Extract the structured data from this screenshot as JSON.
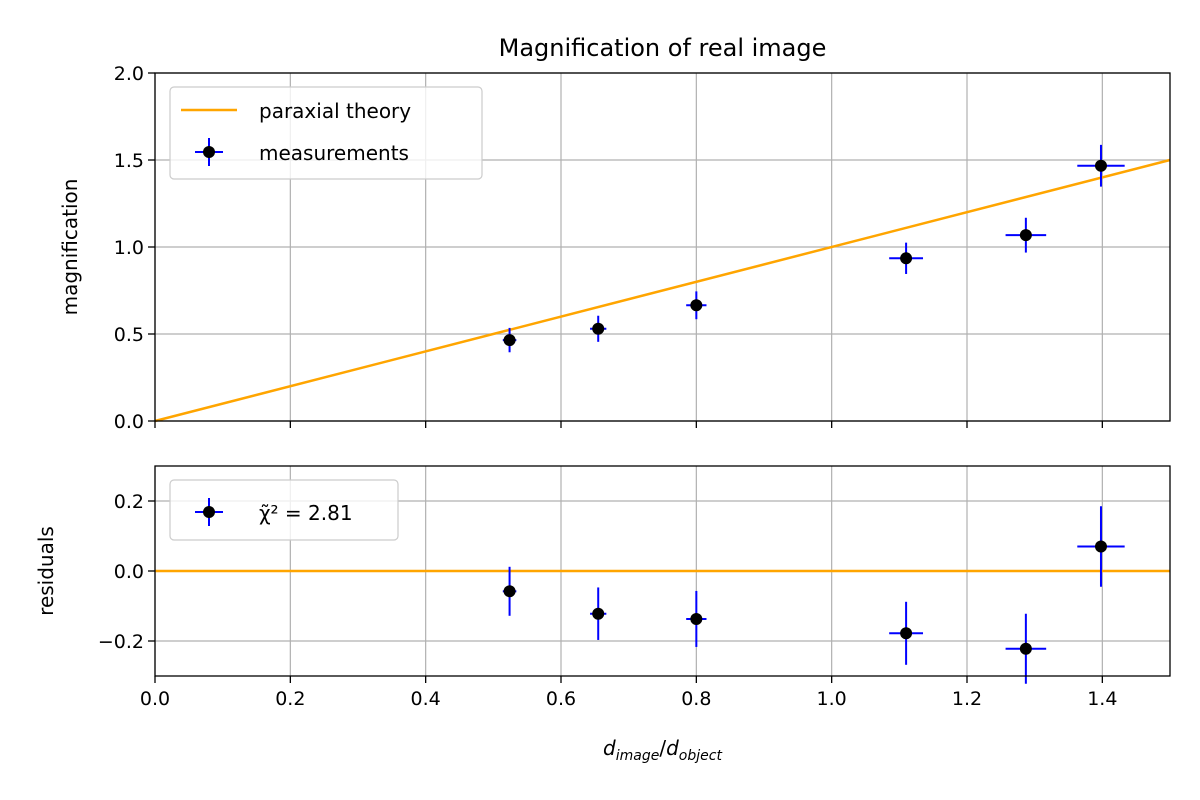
{
  "colors": {
    "theory": "#ffa500",
    "errorbar": "#0000ff",
    "marker": "#000000",
    "grid": "#b0b0b0",
    "axes": "#000000",
    "legend_border": "#cccccc"
  },
  "chart_data": [
    {
      "type": "scatter",
      "title": "Magnification of real image",
      "xlabel": "",
      "ylabel": "magnification",
      "xlim": [
        0.0,
        1.5
      ],
      "ylim": [
        0.0,
        2.0
      ],
      "grid": true,
      "legend_position": "top-left",
      "xticks": [
        0.0,
        0.2,
        0.4,
        0.6,
        0.8,
        1.0,
        1.2,
        1.4
      ],
      "yticks": [
        0.0,
        0.5,
        1.0,
        1.5,
        2.0
      ],
      "ytick_labels": [
        "0.0",
        "0.5",
        "1.0",
        "1.5",
        "2.0"
      ],
      "show_xtick_labels": false,
      "theory": {
        "name": "paraxial theory",
        "type": "line",
        "x": [
          0.0,
          1.5
        ],
        "y": [
          0.0,
          1.5
        ]
      },
      "series": [
        {
          "name": "measurements",
          "x": [
            0.524,
            0.655,
            0.8,
            1.11,
            1.287,
            1.398
          ],
          "y": [
            0.465,
            0.53,
            0.665,
            0.935,
            1.068,
            1.467
          ],
          "xerr": [
            0.01,
            0.012,
            0.015,
            0.025,
            0.03,
            0.035
          ],
          "yerr": [
            0.07,
            0.075,
            0.08,
            0.09,
            0.1,
            0.12
          ]
        }
      ]
    },
    {
      "type": "scatter",
      "title": "",
      "xlabel": "d_image/d_object",
      "ylabel": "residuals",
      "xlim": [
        0.0,
        1.5
      ],
      "ylim": [
        -0.3,
        0.3
      ],
      "grid": true,
      "legend_position": "top-left",
      "xticks": [
        0.0,
        0.2,
        0.4,
        0.6,
        0.8,
        1.0,
        1.2,
        1.4
      ],
      "xtick_labels": [
        "0.0",
        "0.2",
        "0.4",
        "0.6",
        "0.8",
        "1.0",
        "1.2",
        "1.4"
      ],
      "yticks": [
        -0.2,
        0.0,
        0.2
      ],
      "ytick_labels": [
        "−0.2",
        "0.0",
        "0.2"
      ],
      "show_xtick_labels": true,
      "zero_line": 0.0,
      "legend_label": "χ̃² = 2.81",
      "series": [
        {
          "name": "χ̃² = 2.81",
          "x": [
            0.524,
            0.655,
            0.8,
            1.11,
            1.287,
            1.398
          ],
          "y": [
            -0.058,
            -0.122,
            -0.137,
            -0.178,
            -0.222,
            0.07
          ],
          "xerr": [
            0.01,
            0.012,
            0.015,
            0.025,
            0.03,
            0.035
          ],
          "yerr": [
            0.07,
            0.075,
            0.08,
            0.09,
            0.1,
            0.115
          ]
        }
      ]
    }
  ]
}
